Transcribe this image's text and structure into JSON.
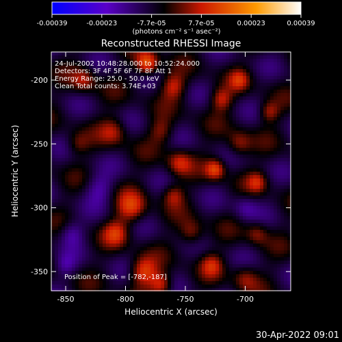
{
  "chart_data": {
    "type": "heatmap",
    "title": "Reconstructed RHESSI Image",
    "xlabel": "Heliocentric X (arcsec)",
    "ylabel": "Heliocentric Y (arcsec)",
    "xlim": [
      -862,
      -662
    ],
    "ylim": [
      -365,
      -178
    ],
    "xticks": [
      -850,
      -800,
      -750,
      -700
    ],
    "yticks": [
      -350,
      -300,
      -250,
      -200
    ],
    "colorbar": {
      "ticks": [
        "-0.00039",
        "-0.00023",
        "-7.7e-05",
        "7.7e-05",
        "0.00023",
        "0.00039"
      ],
      "units": "(photons cm⁻² s⁻¹ asec⁻²)",
      "range": [
        -0.00039,
        0.00039
      ],
      "colors": [
        "#0000ff",
        "#5a00c8",
        "#000000",
        "#cc1800",
        "#ff9a00",
        "#ffffff"
      ]
    },
    "annotations": [
      "24-Jul-2002 10:48:28.000 to 10:52:24.000",
      "Detectors: 3F 4F 5F 6F 7F 8F  Att 1",
      "Energy Range: 25.0 - 50.0 keV",
      "Clean     Total counts: 3.74E+03"
    ],
    "peak_label": "Position of Peak = [-782,-187]",
    "grid": false,
    "legend": "none"
  },
  "footer": {
    "timestamp": "30-Apr-2022 09:01"
  }
}
